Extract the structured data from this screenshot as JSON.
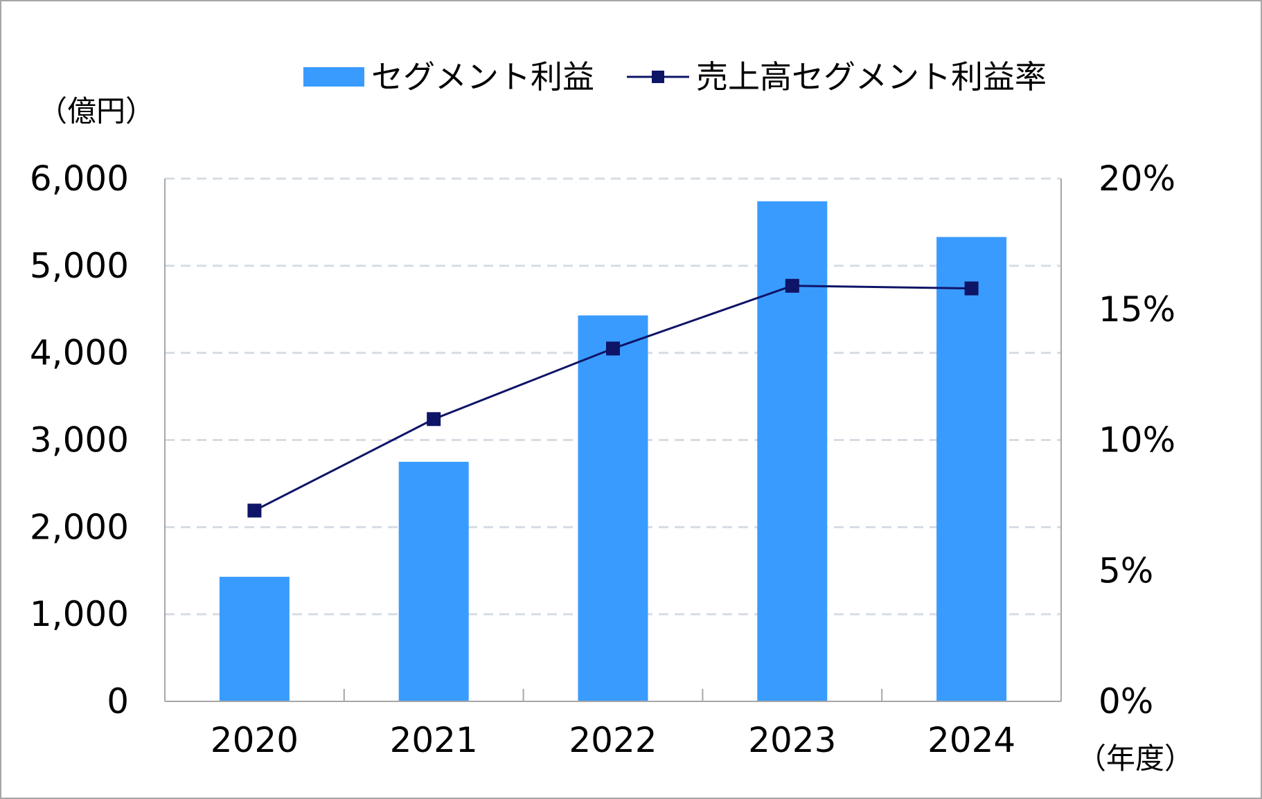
{
  "chart_data": {
    "type": "bar",
    "categories": [
      "2020",
      "2021",
      "2022",
      "2023",
      "2024"
    ],
    "series": [
      {
        "name": "セグメント利益",
        "type": "bar",
        "axis": "left",
        "values": [
          1430,
          2750,
          4430,
          5740,
          5330
        ]
      },
      {
        "name": "売上高セグメント利益率",
        "type": "line",
        "axis": "right",
        "values": [
          7.3,
          10.8,
          13.5,
          15.9,
          15.8
        ]
      }
    ],
    "y_left": {
      "unit_label": "（億円）",
      "ylim": [
        0,
        6000
      ],
      "ticks": [
        "0",
        "1,000",
        "2,000",
        "3,000",
        "4,000",
        "5,000",
        "6,000"
      ]
    },
    "y_right": {
      "ylim": [
        0,
        20
      ],
      "ticks": [
        "0%",
        "5%",
        "10%",
        "15%",
        "20%"
      ]
    },
    "x_unit_label": "（年度）",
    "grid": true,
    "legend_position": "top-center",
    "colors": {
      "bar": "#3a9bff",
      "line": "#0e1466",
      "grid": "#d6dce4",
      "axis": "#a6a6a6",
      "frame": "#a6a6a6"
    }
  }
}
